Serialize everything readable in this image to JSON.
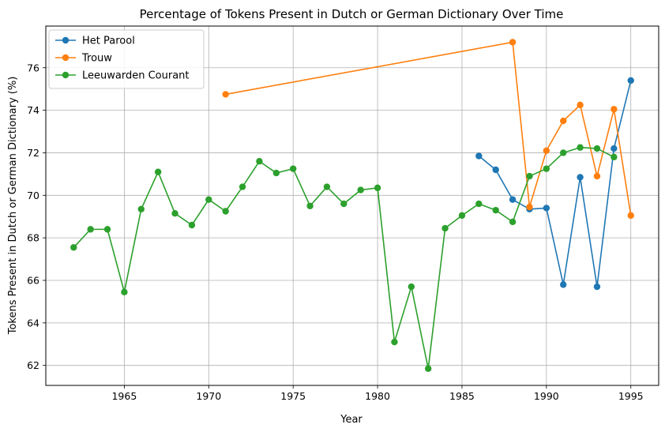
{
  "chart_data": {
    "type": "line",
    "title": "Percentage of Tokens Present in Dutch or German Dictionary Over Time",
    "xlabel": "Year",
    "ylabel": "Tokens Present in Dutch or German Dictionary (%)",
    "xlim": [
      1960.35,
      1996.65
    ],
    "ylim": [
      61.06,
      77.96
    ],
    "xticks": [
      1965,
      1970,
      1975,
      1980,
      1985,
      1990,
      1995
    ],
    "yticks": [
      62,
      64,
      66,
      68,
      70,
      72,
      74,
      76
    ],
    "grid": true,
    "legend_position": "top-left",
    "series": [
      {
        "name": "Het Parool",
        "color": "#1f77b4",
        "x": [
          1986,
          1987,
          1988,
          1989,
          1990,
          1991,
          1992,
          1993,
          1994,
          1995
        ],
        "y": [
          71.85,
          71.2,
          69.8,
          69.35,
          69.4,
          65.8,
          70.85,
          65.7,
          72.2,
          75.4
        ]
      },
      {
        "name": "Trouw",
        "color": "#ff7f0e",
        "x": [
          1971,
          1988,
          1989,
          1990,
          1991,
          1992,
          1993,
          1994,
          1995
        ],
        "y": [
          74.75,
          77.2,
          69.45,
          72.1,
          73.5,
          74.25,
          70.9,
          74.05,
          69.05
        ]
      },
      {
        "name": "Leeuwarden Courant",
        "color": "#2ca02c",
        "x": [
          1962,
          1963,
          1964,
          1965,
          1966,
          1967,
          1968,
          1969,
          1970,
          1971,
          1972,
          1973,
          1974,
          1975,
          1976,
          1977,
          1978,
          1979,
          1980,
          1981,
          1982,
          1983,
          1984,
          1985,
          1986,
          1987,
          1988,
          1989,
          1990,
          1991,
          1992,
          1993,
          1994
        ],
        "y": [
          67.55,
          68.4,
          68.4,
          65.45,
          69.35,
          71.1,
          69.15,
          68.6,
          69.8,
          69.25,
          70.4,
          71.6,
          71.05,
          71.25,
          69.5,
          70.4,
          69.6,
          70.25,
          70.35,
          63.1,
          65.7,
          61.85,
          68.45,
          69.05,
          69.6,
          69.3,
          68.75,
          70.9,
          71.25,
          72.0,
          72.25,
          72.2,
          71.8
        ]
      }
    ]
  }
}
